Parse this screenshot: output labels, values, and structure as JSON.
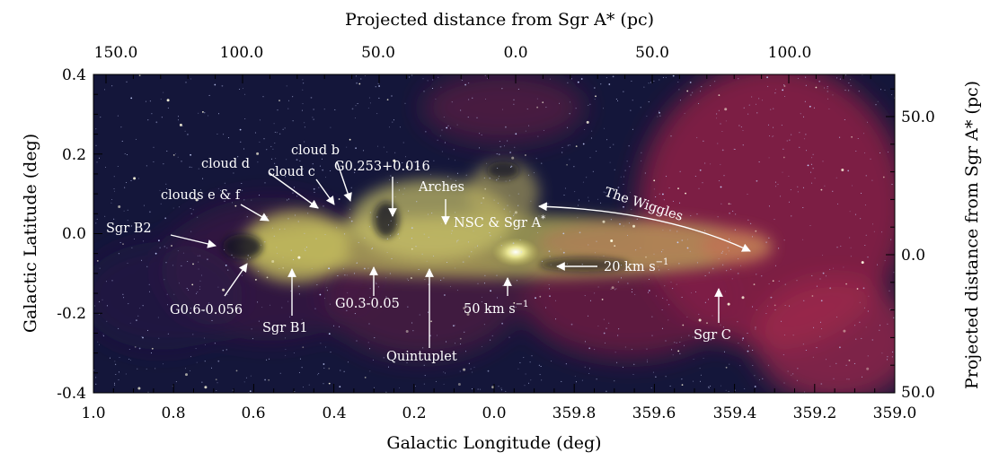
{
  "figure": {
    "top_axis_label": "Projected distance from Sgr A* (pc)",
    "right_axis_label": "Projected distance from Sgr A* (pc)",
    "bottom_axis_label": "Galactic Longitude (deg)",
    "left_axis_label": "Galactic Latitude (deg)",
    "top_ticks": [
      "150.0",
      "100.0",
      "50.0",
      "0.0",
      "50.0",
      "100.0"
    ],
    "bottom_ticks": [
      "1.0",
      "0.8",
      "0.6",
      "0.4",
      "0.2",
      "0.0",
      "359.8",
      "359.6",
      "359.4",
      "359.2",
      "359.0"
    ],
    "left_ticks": [
      "0.4",
      "0.2",
      "0.0",
      "-0.2",
      "-0.4"
    ],
    "right_ticks": [
      "50.0",
      "0.0",
      "50.0"
    ]
  },
  "annotations": {
    "cloud_b": "cloud b",
    "cloud_d": "cloud d",
    "cloud_c": "cloud c",
    "g0253": "G0.253+0.016",
    "clouds_ef": "clouds e & f",
    "arches": "Arches",
    "wiggles": "The Wiggles",
    "sgr_b2": "Sgr B2",
    "nsc": "NSC & Sgr A",
    "twenty_kms": "20 km s",
    "fifty_kms": "50 km s",
    "g06": "G0.6-0.056",
    "g03": "G0.3-0.05",
    "sgr_b1": "Sgr B1",
    "quintuplet": "Quintuplet",
    "sgr_c": "Sgr C",
    "superscript_star": "*",
    "superscript_minus1": "−1"
  },
  "colors": {
    "sky_background": "#14163a",
    "dust_glow": "#a8284e",
    "stellar_core": "#d9d36a",
    "label": "#ffffff"
  }
}
